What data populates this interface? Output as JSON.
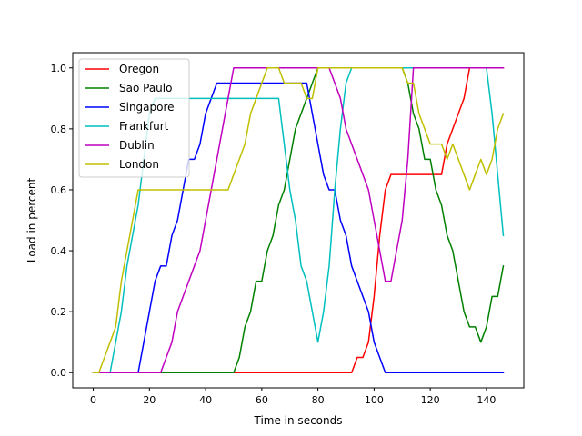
{
  "chart_data": {
    "type": "line",
    "title": "",
    "xlabel": "Time in seconds",
    "ylabel": "Load in percent",
    "xlim": [
      -7.3,
      153.3
    ],
    "ylim": [
      -0.05,
      1.05
    ],
    "xticks": [
      0,
      20,
      40,
      60,
      80,
      100,
      120,
      140
    ],
    "xtick_labels": [
      "0",
      "20",
      "40",
      "60",
      "80",
      "100",
      "120",
      "140"
    ],
    "yticks": [
      0.0,
      0.2,
      0.4,
      0.6,
      0.8,
      1.0
    ],
    "ytick_labels": [
      "0.0",
      "0.2",
      "0.4",
      "0.6",
      "0.8",
      "1.0"
    ],
    "grid": false,
    "legend_position": "top-left",
    "series": [
      {
        "name": "Oregon",
        "color": "#ff0000",
        "points": [
          [
            0,
            0
          ],
          [
            92,
            0
          ],
          [
            94,
            0.05
          ],
          [
            96,
            0.05
          ],
          [
            98,
            0.1
          ],
          [
            100,
            0.25
          ],
          [
            102,
            0.45
          ],
          [
            104,
            0.6
          ],
          [
            106,
            0.65
          ],
          [
            122,
            0.65
          ],
          [
            124,
            0.65
          ],
          [
            126,
            0.75
          ],
          [
            128,
            0.8
          ],
          [
            130,
            0.85
          ],
          [
            132,
            0.9
          ],
          [
            134,
            1.0
          ],
          [
            146,
            1.0
          ]
        ]
      },
      {
        "name": "Sao Paulo",
        "color": "#008000",
        "points": [
          [
            0,
            0
          ],
          [
            50,
            0
          ],
          [
            52,
            0.05
          ],
          [
            54,
            0.15
          ],
          [
            56,
            0.2
          ],
          [
            58,
            0.3
          ],
          [
            60,
            0.3
          ],
          [
            62,
            0.4
          ],
          [
            64,
            0.45
          ],
          [
            66,
            0.55
          ],
          [
            68,
            0.6
          ],
          [
            70,
            0.7
          ],
          [
            72,
            0.8
          ],
          [
            74,
            0.85
          ],
          [
            76,
            0.9
          ],
          [
            78,
            0.95
          ],
          [
            80,
            1.0
          ],
          [
            110,
            1.0
          ],
          [
            112,
            0.95
          ],
          [
            114,
            0.85
          ],
          [
            116,
            0.8
          ],
          [
            118,
            0.7
          ],
          [
            120,
            0.7
          ],
          [
            122,
            0.6
          ],
          [
            124,
            0.55
          ],
          [
            126,
            0.45
          ],
          [
            128,
            0.4
          ],
          [
            130,
            0.3
          ],
          [
            132,
            0.2
          ],
          [
            134,
            0.15
          ],
          [
            136,
            0.15
          ],
          [
            138,
            0.1
          ],
          [
            140,
            0.15
          ],
          [
            142,
            0.25
          ],
          [
            144,
            0.25
          ],
          [
            146,
            0.35
          ]
        ]
      },
      {
        "name": "Singapore",
        "color": "#0000ff",
        "points": [
          [
            0,
            0
          ],
          [
            16,
            0
          ],
          [
            18,
            0.1
          ],
          [
            20,
            0.2
          ],
          [
            22,
            0.3
          ],
          [
            24,
            0.35
          ],
          [
            26,
            0.35
          ],
          [
            28,
            0.45
          ],
          [
            30,
            0.5
          ],
          [
            32,
            0.6
          ],
          [
            34,
            0.7
          ],
          [
            36,
            0.7
          ],
          [
            38,
            0.75
          ],
          [
            40,
            0.85
          ],
          [
            42,
            0.9
          ],
          [
            44,
            0.95
          ],
          [
            76,
            0.95
          ],
          [
            78,
            0.85
          ],
          [
            80,
            0.75
          ],
          [
            82,
            0.65
          ],
          [
            84,
            0.6
          ],
          [
            86,
            0.6
          ],
          [
            88,
            0.5
          ],
          [
            90,
            0.45
          ],
          [
            92,
            0.35
          ],
          [
            94,
            0.3
          ],
          [
            96,
            0.25
          ],
          [
            98,
            0.2
          ],
          [
            100,
            0.1
          ],
          [
            102,
            0.05
          ],
          [
            104,
            0
          ],
          [
            146,
            0
          ]
        ]
      },
      {
        "name": "Frankfurt",
        "color": "#00bfbf",
        "points": [
          [
            0,
            0
          ],
          [
            6,
            0
          ],
          [
            8,
            0.1
          ],
          [
            10,
            0.2
          ],
          [
            12,
            0.35
          ],
          [
            14,
            0.45
          ],
          [
            16,
            0.55
          ],
          [
            18,
            0.7
          ],
          [
            20,
            0.85
          ],
          [
            22,
            0.9
          ],
          [
            66,
            0.9
          ],
          [
            68,
            0.75
          ],
          [
            70,
            0.6
          ],
          [
            72,
            0.5
          ],
          [
            74,
            0.35
          ],
          [
            76,
            0.3
          ],
          [
            78,
            0.2
          ],
          [
            80,
            0.1
          ],
          [
            82,
            0.2
          ],
          [
            84,
            0.35
          ],
          [
            86,
            0.6
          ],
          [
            88,
            0.8
          ],
          [
            90,
            0.95
          ],
          [
            92,
            1.0
          ],
          [
            114,
            1.0
          ],
          [
            116,
            1.0
          ],
          [
            138,
            1.0
          ],
          [
            140,
            1.0
          ],
          [
            142,
            0.85
          ],
          [
            144,
            0.65
          ],
          [
            146,
            0.45
          ]
        ]
      },
      {
        "name": "Dublin",
        "color": "#bf00bf",
        "points": [
          [
            0,
            0
          ],
          [
            24,
            0
          ],
          [
            26,
            0.05
          ],
          [
            28,
            0.1
          ],
          [
            30,
            0.2
          ],
          [
            32,
            0.25
          ],
          [
            34,
            0.3
          ],
          [
            36,
            0.35
          ],
          [
            38,
            0.4
          ],
          [
            40,
            0.5
          ],
          [
            42,
            0.6
          ],
          [
            44,
            0.7
          ],
          [
            46,
            0.8
          ],
          [
            48,
            0.9
          ],
          [
            50,
            1.0
          ],
          [
            84,
            1.0
          ],
          [
            86,
            0.95
          ],
          [
            88,
            0.9
          ],
          [
            90,
            0.8
          ],
          [
            92,
            0.75
          ],
          [
            94,
            0.7
          ],
          [
            96,
            0.65
          ],
          [
            98,
            0.6
          ],
          [
            100,
            0.5
          ],
          [
            102,
            0.4
          ],
          [
            104,
            0.3
          ],
          [
            106,
            0.3
          ],
          [
            108,
            0.4
          ],
          [
            110,
            0.5
          ],
          [
            112,
            0.7
          ],
          [
            114,
            1.0
          ],
          [
            146,
            1.0
          ]
        ]
      },
      {
        "name": "London",
        "color": "#bfbf00",
        "points": [
          [
            0,
            0
          ],
          [
            2,
            0
          ],
          [
            4,
            0.05
          ],
          [
            6,
            0.1
          ],
          [
            8,
            0.15
          ],
          [
            10,
            0.3
          ],
          [
            12,
            0.4
          ],
          [
            14,
            0.5
          ],
          [
            16,
            0.6
          ],
          [
            44,
            0.6
          ],
          [
            46,
            0.6
          ],
          [
            48,
            0.6
          ],
          [
            50,
            0.65
          ],
          [
            52,
            0.7
          ],
          [
            54,
            0.75
          ],
          [
            56,
            0.85
          ],
          [
            58,
            0.9
          ],
          [
            60,
            0.95
          ],
          [
            62,
            1.0
          ],
          [
            66,
            1.0
          ],
          [
            68,
            0.95
          ],
          [
            72,
            0.95
          ],
          [
            74,
            0.95
          ],
          [
            76,
            0.9
          ],
          [
            78,
            0.9
          ],
          [
            80,
            1.0
          ],
          [
            110,
            1.0
          ],
          [
            112,
            0.95
          ],
          [
            114,
            0.95
          ],
          [
            116,
            0.85
          ],
          [
            118,
            0.8
          ],
          [
            120,
            0.75
          ],
          [
            124,
            0.75
          ],
          [
            126,
            0.7
          ],
          [
            128,
            0.75
          ],
          [
            130,
            0.7
          ],
          [
            132,
            0.65
          ],
          [
            134,
            0.6
          ],
          [
            136,
            0.65
          ],
          [
            138,
            0.7
          ],
          [
            140,
            0.65
          ],
          [
            142,
            0.7
          ],
          [
            144,
            0.8
          ],
          [
            146,
            0.85
          ]
        ]
      }
    ]
  }
}
